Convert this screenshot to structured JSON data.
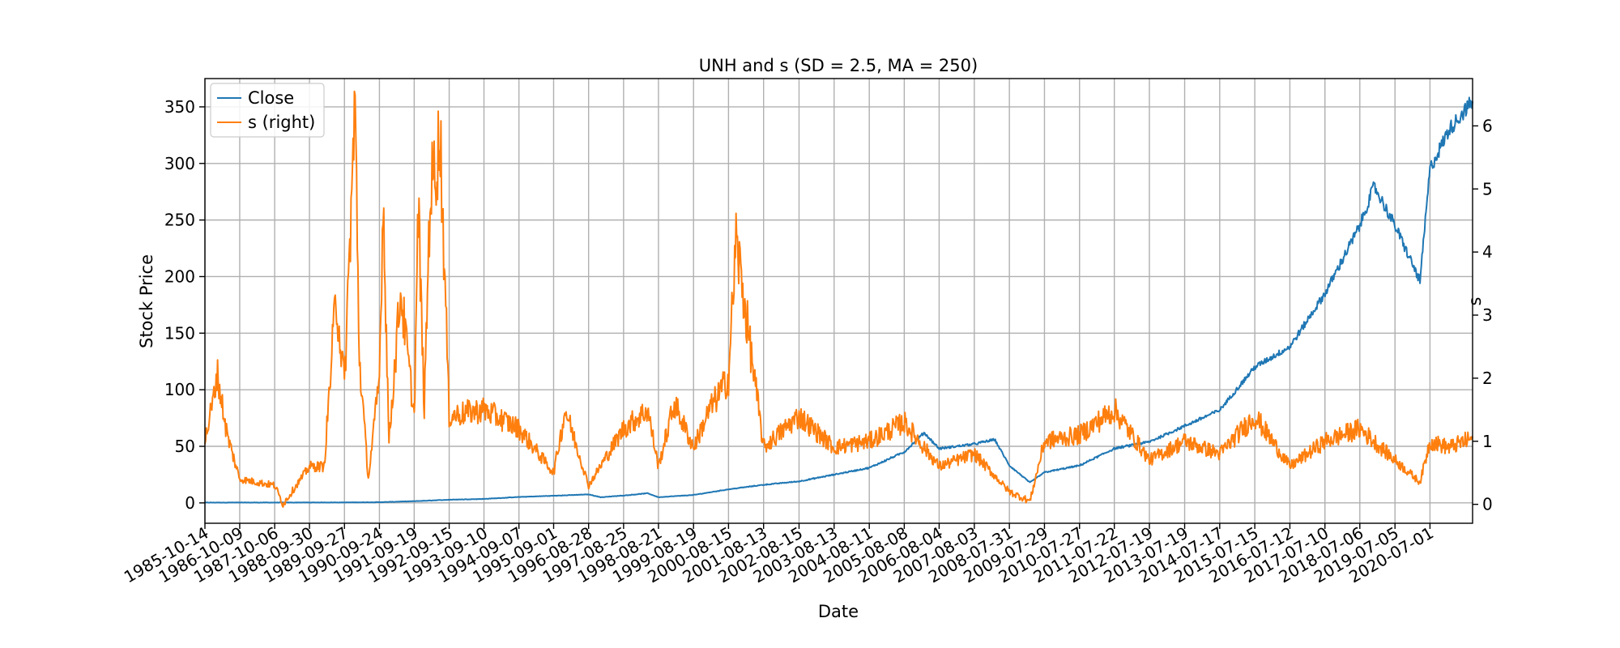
{
  "chart_data": {
    "type": "line",
    "title": "UNH and s (SD = 2.5, MA = 250)",
    "xlabel": "Date",
    "ylabel": "Stock Price",
    "y2label": "s",
    "grid": true,
    "legend_placement": "top-left",
    "xlim": [
      "1985-10-14",
      "2021-09-15"
    ],
    "ylim": [
      -18,
      375
    ],
    "y2lim": [
      -0.3,
      6.75
    ],
    "x_ticks": [
      "1985-10-14",
      "1986-10-09",
      "1987-10-06",
      "1988-09-30",
      "1989-09-27",
      "1990-09-24",
      "1991-09-19",
      "1992-09-15",
      "1993-09-10",
      "1994-09-07",
      "1995-09-01",
      "1996-08-28",
      "1997-08-25",
      "1998-08-21",
      "1999-08-19",
      "2000-08-15",
      "2001-08-13",
      "2002-08-15",
      "2003-08-13",
      "2004-08-11",
      "2005-08-08",
      "2006-08-04",
      "2007-08-03",
      "2008-07-31",
      "2009-07-29",
      "2010-07-27",
      "2011-07-22",
      "2012-07-19",
      "2013-07-19",
      "2014-07-17",
      "2015-07-15",
      "2016-07-12",
      "2017-07-10",
      "2018-07-06",
      "2019-07-05",
      "2020-07-01"
    ],
    "y_ticks": [
      "0",
      "50",
      "100",
      "150",
      "200",
      "250",
      "300",
      "350"
    ],
    "y2_ticks": [
      "0",
      "1",
      "2",
      "3",
      "4",
      "5",
      "6"
    ],
    "series": [
      {
        "name": "Close",
        "axis": "left",
        "color": "#1f77b4",
        "points": [
          [
            "1985-10-14",
            0.3
          ],
          [
            "1987-10-06",
            0.3
          ],
          [
            "1989-09-27",
            0.4
          ],
          [
            "1990-09-24",
            0.6
          ],
          [
            "1991-09-19",
            1.5
          ],
          [
            "1992-09-15",
            2.8
          ],
          [
            "1993-09-10",
            3.5
          ],
          [
            "1994-09-07",
            5.2
          ],
          [
            "1995-09-01",
            6.3
          ],
          [
            "1996-08-28",
            7.5
          ],
          [
            "1997-01-01",
            5.0
          ],
          [
            "1997-08-25",
            6.5
          ],
          [
            "1998-05-01",
            8.5
          ],
          [
            "1998-08-21",
            5.0
          ],
          [
            "1999-08-19",
            7.0
          ],
          [
            "2000-08-15",
            12.0
          ],
          [
            "2001-08-13",
            16.0
          ],
          [
            "2002-08-15",
            19.0
          ],
          [
            "2003-08-13",
            25.0
          ],
          [
            "2004-08-11",
            31.0
          ],
          [
            "2005-08-08",
            45.0
          ],
          [
            "2006-03-01",
            62.0
          ],
          [
            "2006-08-04",
            48.0
          ],
          [
            "2007-08-03",
            52.0
          ],
          [
            "2008-03-01",
            56.0
          ],
          [
            "2008-07-31",
            33.0
          ],
          [
            "2009-03-01",
            18.0
          ],
          [
            "2009-07-29",
            27.0
          ],
          [
            "2010-07-27",
            33.0
          ],
          [
            "2011-07-22",
            48.0
          ],
          [
            "2012-07-19",
            54.0
          ],
          [
            "2013-07-19",
            68.0
          ],
          [
            "2014-07-17",
            82.0
          ],
          [
            "2015-07-15",
            120.0
          ],
          [
            "2016-07-12",
            138.0
          ],
          [
            "2017-07-10",
            185.0
          ],
          [
            "2018-07-06",
            245.0
          ],
          [
            "2018-12-01",
            280.0
          ],
          [
            "2019-07-05",
            245.0
          ],
          [
            "2020-03-20",
            196.0
          ],
          [
            "2020-07-01",
            295.0
          ],
          [
            "2021-01-15",
            330.0
          ],
          [
            "2021-09-15",
            355.0
          ]
        ]
      },
      {
        "name": "s (right)",
        "axis": "right",
        "color": "#ff7f0e",
        "points": [
          [
            "1985-10-14",
            1.0
          ],
          [
            "1986-01-15",
            1.7
          ],
          [
            "1986-02-15",
            2.1
          ],
          [
            "1986-06-01",
            1.1
          ],
          [
            "1986-10-09",
            0.4
          ],
          [
            "1987-10-06",
            0.3
          ],
          [
            "1988-01-01",
            0.0
          ],
          [
            "1988-09-30",
            0.6
          ],
          [
            "1989-03-01",
            0.6
          ],
          [
            "1989-07-01",
            3.3
          ],
          [
            "1989-09-27",
            1.9
          ],
          [
            "1990-01-15",
            6.3
          ],
          [
            "1990-03-01",
            2.3
          ],
          [
            "1990-06-01",
            0.4
          ],
          [
            "1990-09-24",
            2.0
          ],
          [
            "1990-11-01",
            4.9
          ],
          [
            "1991-01-01",
            1.0
          ],
          [
            "1991-05-01",
            3.4
          ],
          [
            "1991-09-19",
            1.4
          ],
          [
            "1991-11-01",
            4.7
          ],
          [
            "1992-01-01",
            1.5
          ],
          [
            "1992-03-01",
            4.9
          ],
          [
            "1992-06-15",
            5.8
          ],
          [
            "1992-09-15",
            1.4
          ],
          [
            "1993-09-10",
            1.5
          ],
          [
            "1994-09-07",
            1.2
          ],
          [
            "1995-09-01",
            0.5
          ],
          [
            "1996-01-01",
            1.5
          ],
          [
            "1996-08-28",
            0.3
          ],
          [
            "1997-08-25",
            1.2
          ],
          [
            "1998-05-01",
            1.5
          ],
          [
            "1998-08-21",
            0.6
          ],
          [
            "1999-02-01",
            1.6
          ],
          [
            "1999-08-19",
            0.9
          ],
          [
            "2000-02-01",
            1.5
          ],
          [
            "2000-08-15",
            2.0
          ],
          [
            "2000-11-01",
            4.2
          ],
          [
            "2001-08-13",
            0.9
          ],
          [
            "2002-08-15",
            1.4
          ],
          [
            "2003-08-13",
            0.9
          ],
          [
            "2004-08-11",
            1.0
          ],
          [
            "2005-08-08",
            1.3
          ],
          [
            "2006-08-04",
            0.6
          ],
          [
            "2007-08-03",
            0.8
          ],
          [
            "2008-07-31",
            0.2
          ],
          [
            "2009-03-01",
            0.05
          ],
          [
            "2009-07-29",
            1.0
          ],
          [
            "2010-07-27",
            1.1
          ],
          [
            "2011-07-22",
            1.5
          ],
          [
            "2012-07-19",
            0.7
          ],
          [
            "2013-07-19",
            1.0
          ],
          [
            "2014-07-17",
            0.8
          ],
          [
            "2015-07-15",
            1.4
          ],
          [
            "2016-07-12",
            0.6
          ],
          [
            "2017-07-10",
            1.0
          ],
          [
            "2018-07-06",
            1.2
          ],
          [
            "2019-07-05",
            0.7
          ],
          [
            "2020-03-20",
            0.35
          ],
          [
            "2020-07-01",
            1.0
          ],
          [
            "2021-01-15",
            0.9
          ],
          [
            "2021-09-15",
            1.05
          ]
        ]
      }
    ]
  }
}
